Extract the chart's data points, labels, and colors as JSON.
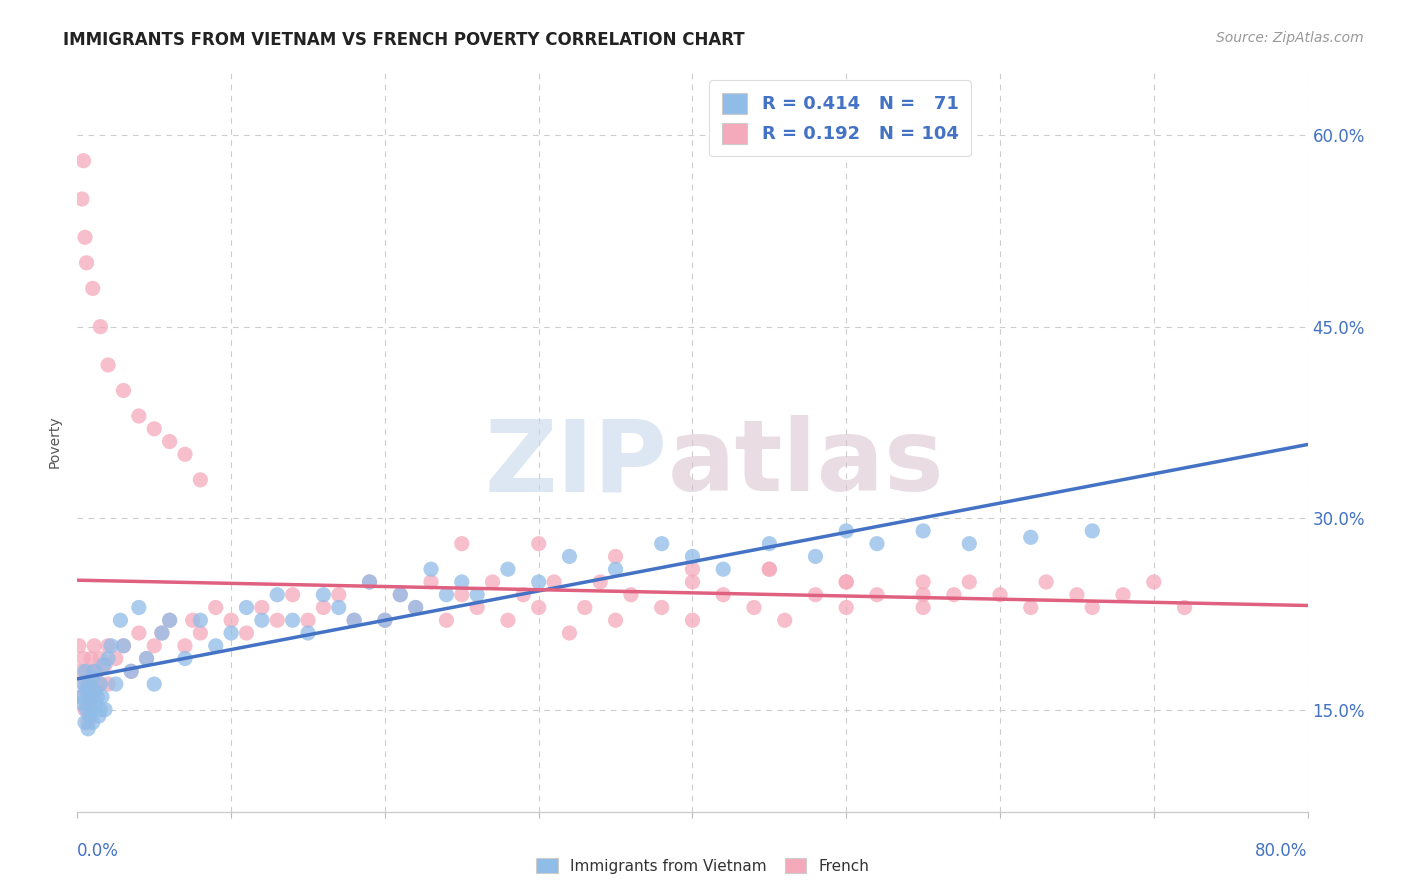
{
  "title": "IMMIGRANTS FROM VIETNAM VS FRENCH POVERTY CORRELATION CHART",
  "source": "Source: ZipAtlas.com",
  "ylabel": "Poverty",
  "xlim": [
    0.0,
    80.0
  ],
  "ylim": [
    7.0,
    65.0
  ],
  "yticks": [
    15.0,
    30.0,
    45.0,
    60.0
  ],
  "ytick_labels": [
    "15.0%",
    "30.0%",
    "45.0%",
    "60.0%"
  ],
  "xticks": [
    0.0,
    10.0,
    20.0,
    30.0,
    40.0,
    50.0,
    60.0,
    70.0,
    80.0
  ],
  "color_blue": "#90BCE8",
  "color_pink": "#F5AABB",
  "line_color_blue": "#4472C4",
  "line_color_pink": "#E06080",
  "legend_text_color": "#4472C4",
  "background_color": "#FFFFFF",
  "blue_scatter_x": [
    0.2,
    0.3,
    0.4,
    0.5,
    0.5,
    0.6,
    0.6,
    0.7,
    0.7,
    0.8,
    0.8,
    0.9,
    0.9,
    1.0,
    1.0,
    1.1,
    1.1,
    1.2,
    1.3,
    1.4,
    1.5,
    1.5,
    1.6,
    1.7,
    1.8,
    2.0,
    2.2,
    2.5,
    2.8,
    3.0,
    3.5,
    4.0,
    4.5,
    5.0,
    5.5,
    6.0,
    7.0,
    8.0,
    9.0,
    10.0,
    11.0,
    12.0,
    13.0,
    14.0,
    15.0,
    16.0,
    17.0,
    18.0,
    19.0,
    20.0,
    21.0,
    22.0,
    23.0,
    24.0,
    25.0,
    26.0,
    28.0,
    30.0,
    32.0,
    35.0,
    38.0,
    40.0,
    42.0,
    45.0,
    48.0,
    50.0,
    52.0,
    55.0,
    58.0,
    62.0,
    66.0
  ],
  "blue_scatter_y": [
    16.0,
    15.5,
    17.0,
    14.0,
    18.0,
    15.0,
    16.5,
    17.0,
    13.5,
    16.0,
    14.5,
    15.0,
    16.0,
    17.5,
    14.0,
    16.5,
    18.0,
    15.5,
    16.0,
    14.5,
    17.0,
    15.0,
    16.0,
    18.5,
    15.0,
    19.0,
    20.0,
    17.0,
    22.0,
    20.0,
    18.0,
    23.0,
    19.0,
    17.0,
    21.0,
    22.0,
    19.0,
    22.0,
    20.0,
    21.0,
    23.0,
    22.0,
    24.0,
    22.0,
    21.0,
    24.0,
    23.0,
    22.0,
    25.0,
    22.0,
    24.0,
    23.0,
    26.0,
    24.0,
    25.0,
    24.0,
    26.0,
    25.0,
    27.0,
    26.0,
    28.0,
    27.0,
    26.0,
    28.0,
    27.0,
    29.0,
    28.0,
    29.0,
    28.0,
    28.5,
    29.0
  ],
  "pink_scatter_x": [
    0.1,
    0.2,
    0.3,
    0.4,
    0.5,
    0.5,
    0.6,
    0.7,
    0.7,
    0.8,
    0.8,
    0.9,
    1.0,
    1.0,
    1.1,
    1.2,
    1.3,
    1.5,
    1.5,
    1.8,
    2.0,
    2.0,
    2.5,
    3.0,
    3.5,
    4.0,
    4.5,
    5.0,
    5.5,
    6.0,
    7.0,
    7.5,
    8.0,
    9.0,
    10.0,
    11.0,
    12.0,
    13.0,
    14.0,
    15.0,
    16.0,
    17.0,
    18.0,
    19.0,
    20.0,
    21.0,
    22.0,
    23.0,
    24.0,
    25.0,
    26.0,
    27.0,
    28.0,
    29.0,
    30.0,
    31.0,
    32.0,
    33.0,
    34.0,
    35.0,
    36.0,
    38.0,
    40.0,
    40.0,
    42.0,
    44.0,
    45.0,
    46.0,
    48.0,
    50.0,
    50.0,
    52.0,
    55.0,
    55.0,
    57.0,
    58.0,
    60.0,
    62.0,
    63.0,
    65.0,
    66.0,
    68.0,
    70.0,
    72.0,
    0.3,
    0.4,
    0.5,
    0.6,
    1.0,
    1.5,
    2.0,
    3.0,
    4.0,
    5.0,
    6.0,
    7.0,
    8.0,
    25.0,
    30.0,
    35.0,
    40.0,
    45.0,
    50.0,
    55.0
  ],
  "pink_scatter_y": [
    20.0,
    18.0,
    16.0,
    19.0,
    17.0,
    15.0,
    18.0,
    16.5,
    14.0,
    17.0,
    15.5,
    19.0,
    16.0,
    18.0,
    20.0,
    16.5,
    18.0,
    17.0,
    19.0,
    18.5,
    20.0,
    17.0,
    19.0,
    20.0,
    18.0,
    21.0,
    19.0,
    20.0,
    21.0,
    22.0,
    20.0,
    22.0,
    21.0,
    23.0,
    22.0,
    21.0,
    23.0,
    22.0,
    24.0,
    22.0,
    23.0,
    24.0,
    22.0,
    25.0,
    22.0,
    24.0,
    23.0,
    25.0,
    22.0,
    24.0,
    23.0,
    25.0,
    22.0,
    24.0,
    23.0,
    25.0,
    21.0,
    23.0,
    25.0,
    22.0,
    24.0,
    23.0,
    25.0,
    22.0,
    24.0,
    23.0,
    26.0,
    22.0,
    24.0,
    23.0,
    25.0,
    24.0,
    23.0,
    25.0,
    24.0,
    25.0,
    24.0,
    23.0,
    25.0,
    24.0,
    23.0,
    24.0,
    25.0,
    23.0,
    55.0,
    58.0,
    52.0,
    50.0,
    48.0,
    45.0,
    42.0,
    40.0,
    38.0,
    37.0,
    36.0,
    35.0,
    33.0,
    28.0,
    28.0,
    27.0,
    26.0,
    26.0,
    25.0,
    24.0
  ]
}
